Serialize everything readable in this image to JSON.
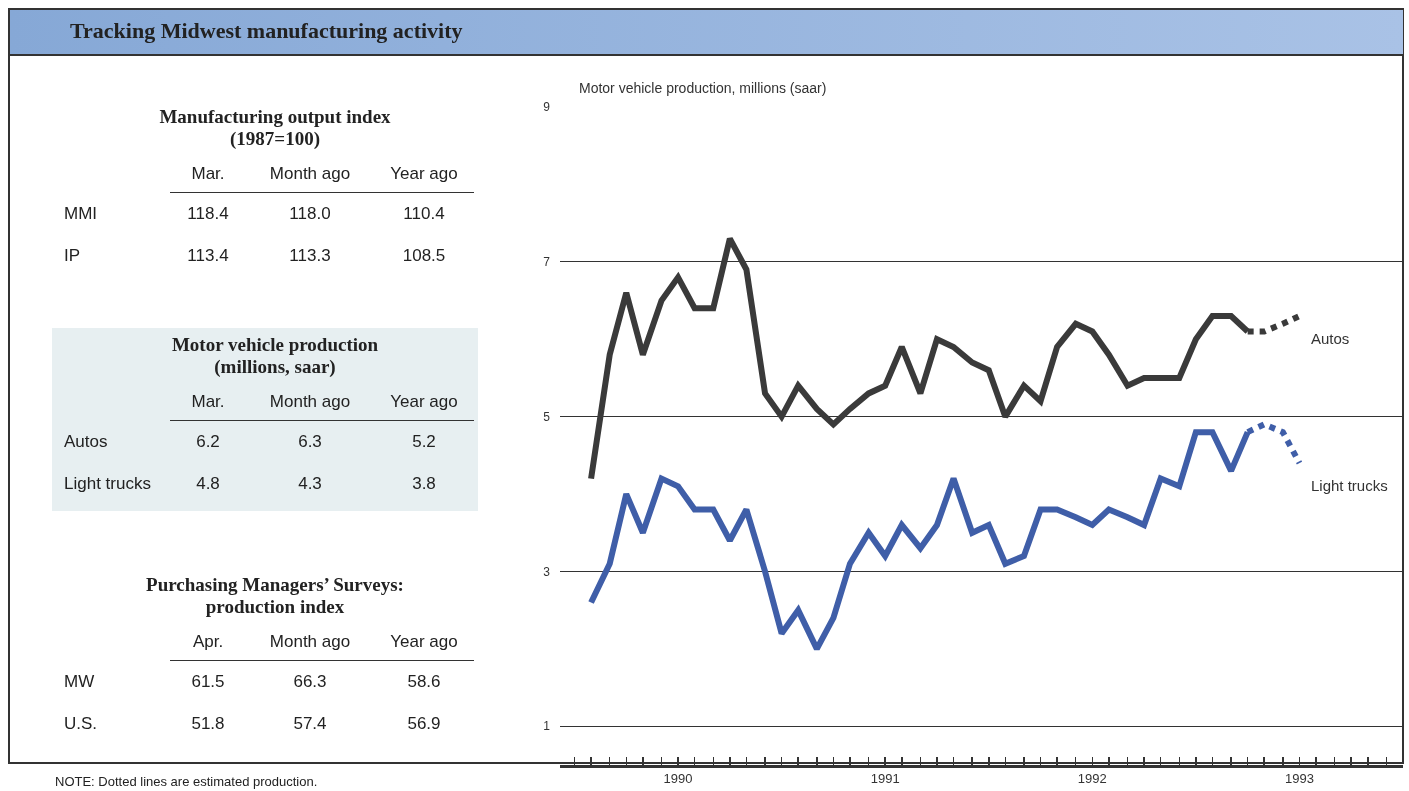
{
  "chart_data": [
    {
      "type": "other",
      "title": "Manufacturing output index\n(1987=100)",
      "categories": [
        "Mar.",
        "Month ago",
        "Year ago"
      ],
      "y_categories": [
        "MMI",
        "IP"
      ],
      "cell_labels": [
        [
          "118.4",
          "118.0",
          "110.4"
        ],
        [
          "113.4",
          "113.3",
          "108.5"
        ]
      ]
    },
    {
      "type": "other",
      "title": "Motor vehicle production\n(millions, saar)",
      "color": "#e7eff1",
      "categories": [
        "Mar.",
        "Month ago",
        "Year ago"
      ],
      "y_categories": [
        "Autos",
        "Light trucks"
      ],
      "cell_labels": [
        [
          "6.2",
          "6.3",
          "5.2"
        ],
        [
          "4.8",
          "4.3",
          "3.8"
        ]
      ]
    },
    {
      "type": "other",
      "title": "Purchasing Managers’ Surveys:\nproduction index",
      "categories": [
        "Apr.",
        "Month ago",
        "Year ago"
      ],
      "y_categories": [
        "MW",
        "U.S."
      ],
      "cell_labels": [
        [
          "61.5",
          "66.3",
          "58.6"
        ],
        [
          "51.8",
          "57.4",
          "56.9"
        ]
      ]
    },
    {
      "type": "line",
      "title": "Tracking Midwest manufacturing activity",
      "ylabel": "Motor vehicle production, millions (saar)",
      "annotations": [
        "NOTE: Dotted lines are estimated production."
      ],
      "x": [
        1990.08,
        1990.17,
        1990.25,
        1990.33,
        1990.42,
        1990.5,
        1990.58,
        1990.67,
        1990.75,
        1990.83,
        1990.92,
        1991.0,
        1991.08,
        1991.17,
        1991.25,
        1991.33,
        1991.42,
        1991.5,
        1991.58,
        1991.67,
        1991.75,
        1991.83,
        1991.92,
        1992.0,
        1992.08,
        1992.17,
        1992.25,
        1992.33,
        1992.42,
        1992.5,
        1992.58,
        1992.67,
        1992.75,
        1992.83,
        1992.92,
        1993.0,
        1993.08,
        1993.17,
        1993.25
      ],
      "series": [
        {
          "color": "#3a3a3a",
          "values": [
            4.2,
            5.8,
            6.6,
            5.8,
            6.5,
            6.8,
            6.4,
            6.4,
            7.3,
            6.9,
            5.3,
            5.0,
            5.4,
            5.1,
            4.9,
            5.1,
            5.3,
            5.4,
            5.9,
            5.3,
            6.0,
            5.9,
            5.7,
            5.6,
            5.0,
            5.4,
            5.2,
            5.9,
            6.2,
            6.1,
            5.8,
            5.4,
            5.5,
            5.5,
            5.5,
            6.0,
            6.3,
            6.3,
            6.1
          ]
        },
        {
          "color": "#3f5ea8",
          "values": [
            2.6,
            3.1,
            4.0,
            3.5,
            4.2,
            4.1,
            3.8,
            3.8,
            3.4,
            3.8,
            3.0,
            2.2,
            2.5,
            2.0,
            2.4,
            3.1,
            3.5,
            3.2,
            3.6,
            3.3,
            3.6,
            4.2,
            3.5,
            3.6,
            3.1,
            3.2,
            3.8,
            3.8,
            3.7,
            3.6,
            3.8,
            3.7,
            3.6,
            4.2,
            4.1,
            4.8,
            4.8,
            4.3,
            4.8
          ]
        },
        {
          "name": "Autos",
          "color": "#3a3a3a",
          "line_style": "dotted",
          "x": [
            1993.25,
            1993.33,
            1993.42,
            1993.5
          ],
          "values": [
            6.1,
            6.1,
            6.2,
            6.3
          ]
        },
        {
          "name": "Light trucks",
          "color": "#3f5ea8",
          "line_style": "dotted",
          "x": [
            1993.25,
            1993.33,
            1993.42,
            1993.5
          ],
          "values": [
            4.8,
            4.9,
            4.8,
            4.4
          ]
        }
      ],
      "xlim": [
        1989.93,
        1994
      ],
      "xticks": [
        {
          "value": 1990,
          "label": null
        },
        {
          "value": 1990.08,
          "label": null
        },
        {
          "value": 1990.17,
          "label": null
        },
        {
          "value": 1990.25,
          "label": null
        },
        {
          "value": 1990.33,
          "label": null
        },
        {
          "value": 1990.42,
          "label": null
        },
        {
          "value": 1990.5,
          "label": "1990"
        },
        {
          "value": 1990.58,
          "label": null
        },
        {
          "value": 1990.67,
          "label": null
        },
        {
          "value": 1990.75,
          "label": null
        },
        {
          "value": 1990.83,
          "label": null
        },
        {
          "value": 1990.92,
          "label": null
        },
        {
          "value": 1991,
          "label": null
        },
        {
          "value": 1991.08,
          "label": null
        },
        {
          "value": 1991.17,
          "label": null
        },
        {
          "value": 1991.25,
          "label": null
        },
        {
          "value": 1991.33,
          "label": null
        },
        {
          "value": 1991.42,
          "label": null
        },
        {
          "value": 1991.5,
          "label": "1991"
        },
        {
          "value": 1991.58,
          "label": null
        },
        {
          "value": 1991.67,
          "label": null
        },
        {
          "value": 1991.75,
          "label": null
        },
        {
          "value": 1991.83,
          "label": null
        },
        {
          "value": 1991.92,
          "label": null
        },
        {
          "value": 1992,
          "label": null
        },
        {
          "value": 1992.08,
          "label": null
        },
        {
          "value": 1992.17,
          "label": null
        },
        {
          "value": 1992.25,
          "label": null
        },
        {
          "value": 1992.33,
          "label": null
        },
        {
          "value": 1992.42,
          "label": null
        },
        {
          "value": 1992.5,
          "label": "1992"
        },
        {
          "value": 1992.58,
          "label": null
        },
        {
          "value": 1992.67,
          "label": null
        },
        {
          "value": 1992.75,
          "label": null
        },
        {
          "value": 1992.83,
          "label": null
        },
        {
          "value": 1992.92,
          "label": null
        },
        {
          "value": 1993,
          "label": null
        },
        {
          "value": 1993.08,
          "label": null
        },
        {
          "value": 1993.17,
          "label": null
        },
        {
          "value": 1993.25,
          "label": null
        },
        {
          "value": 1993.33,
          "label": null
        },
        {
          "value": 1993.42,
          "label": null
        },
        {
          "value": 1993.5,
          "label": "1993"
        },
        {
          "value": 1993.58,
          "label": null
        },
        {
          "value": 1993.67,
          "label": null
        },
        {
          "value": 1993.75,
          "label": null
        },
        {
          "value": 1993.83,
          "label": null
        },
        {
          "value": 1993.92,
          "label": null
        },
        {
          "value": 1994,
          "label": null
        }
      ],
      "ylim": [
        0.5,
        9
      ],
      "yticks": [
        1,
        3,
        5,
        7,
        9
      ],
      "grid": "y",
      "legend": false,
      "marker": "none",
      "line_style": "solid"
    }
  ]
}
